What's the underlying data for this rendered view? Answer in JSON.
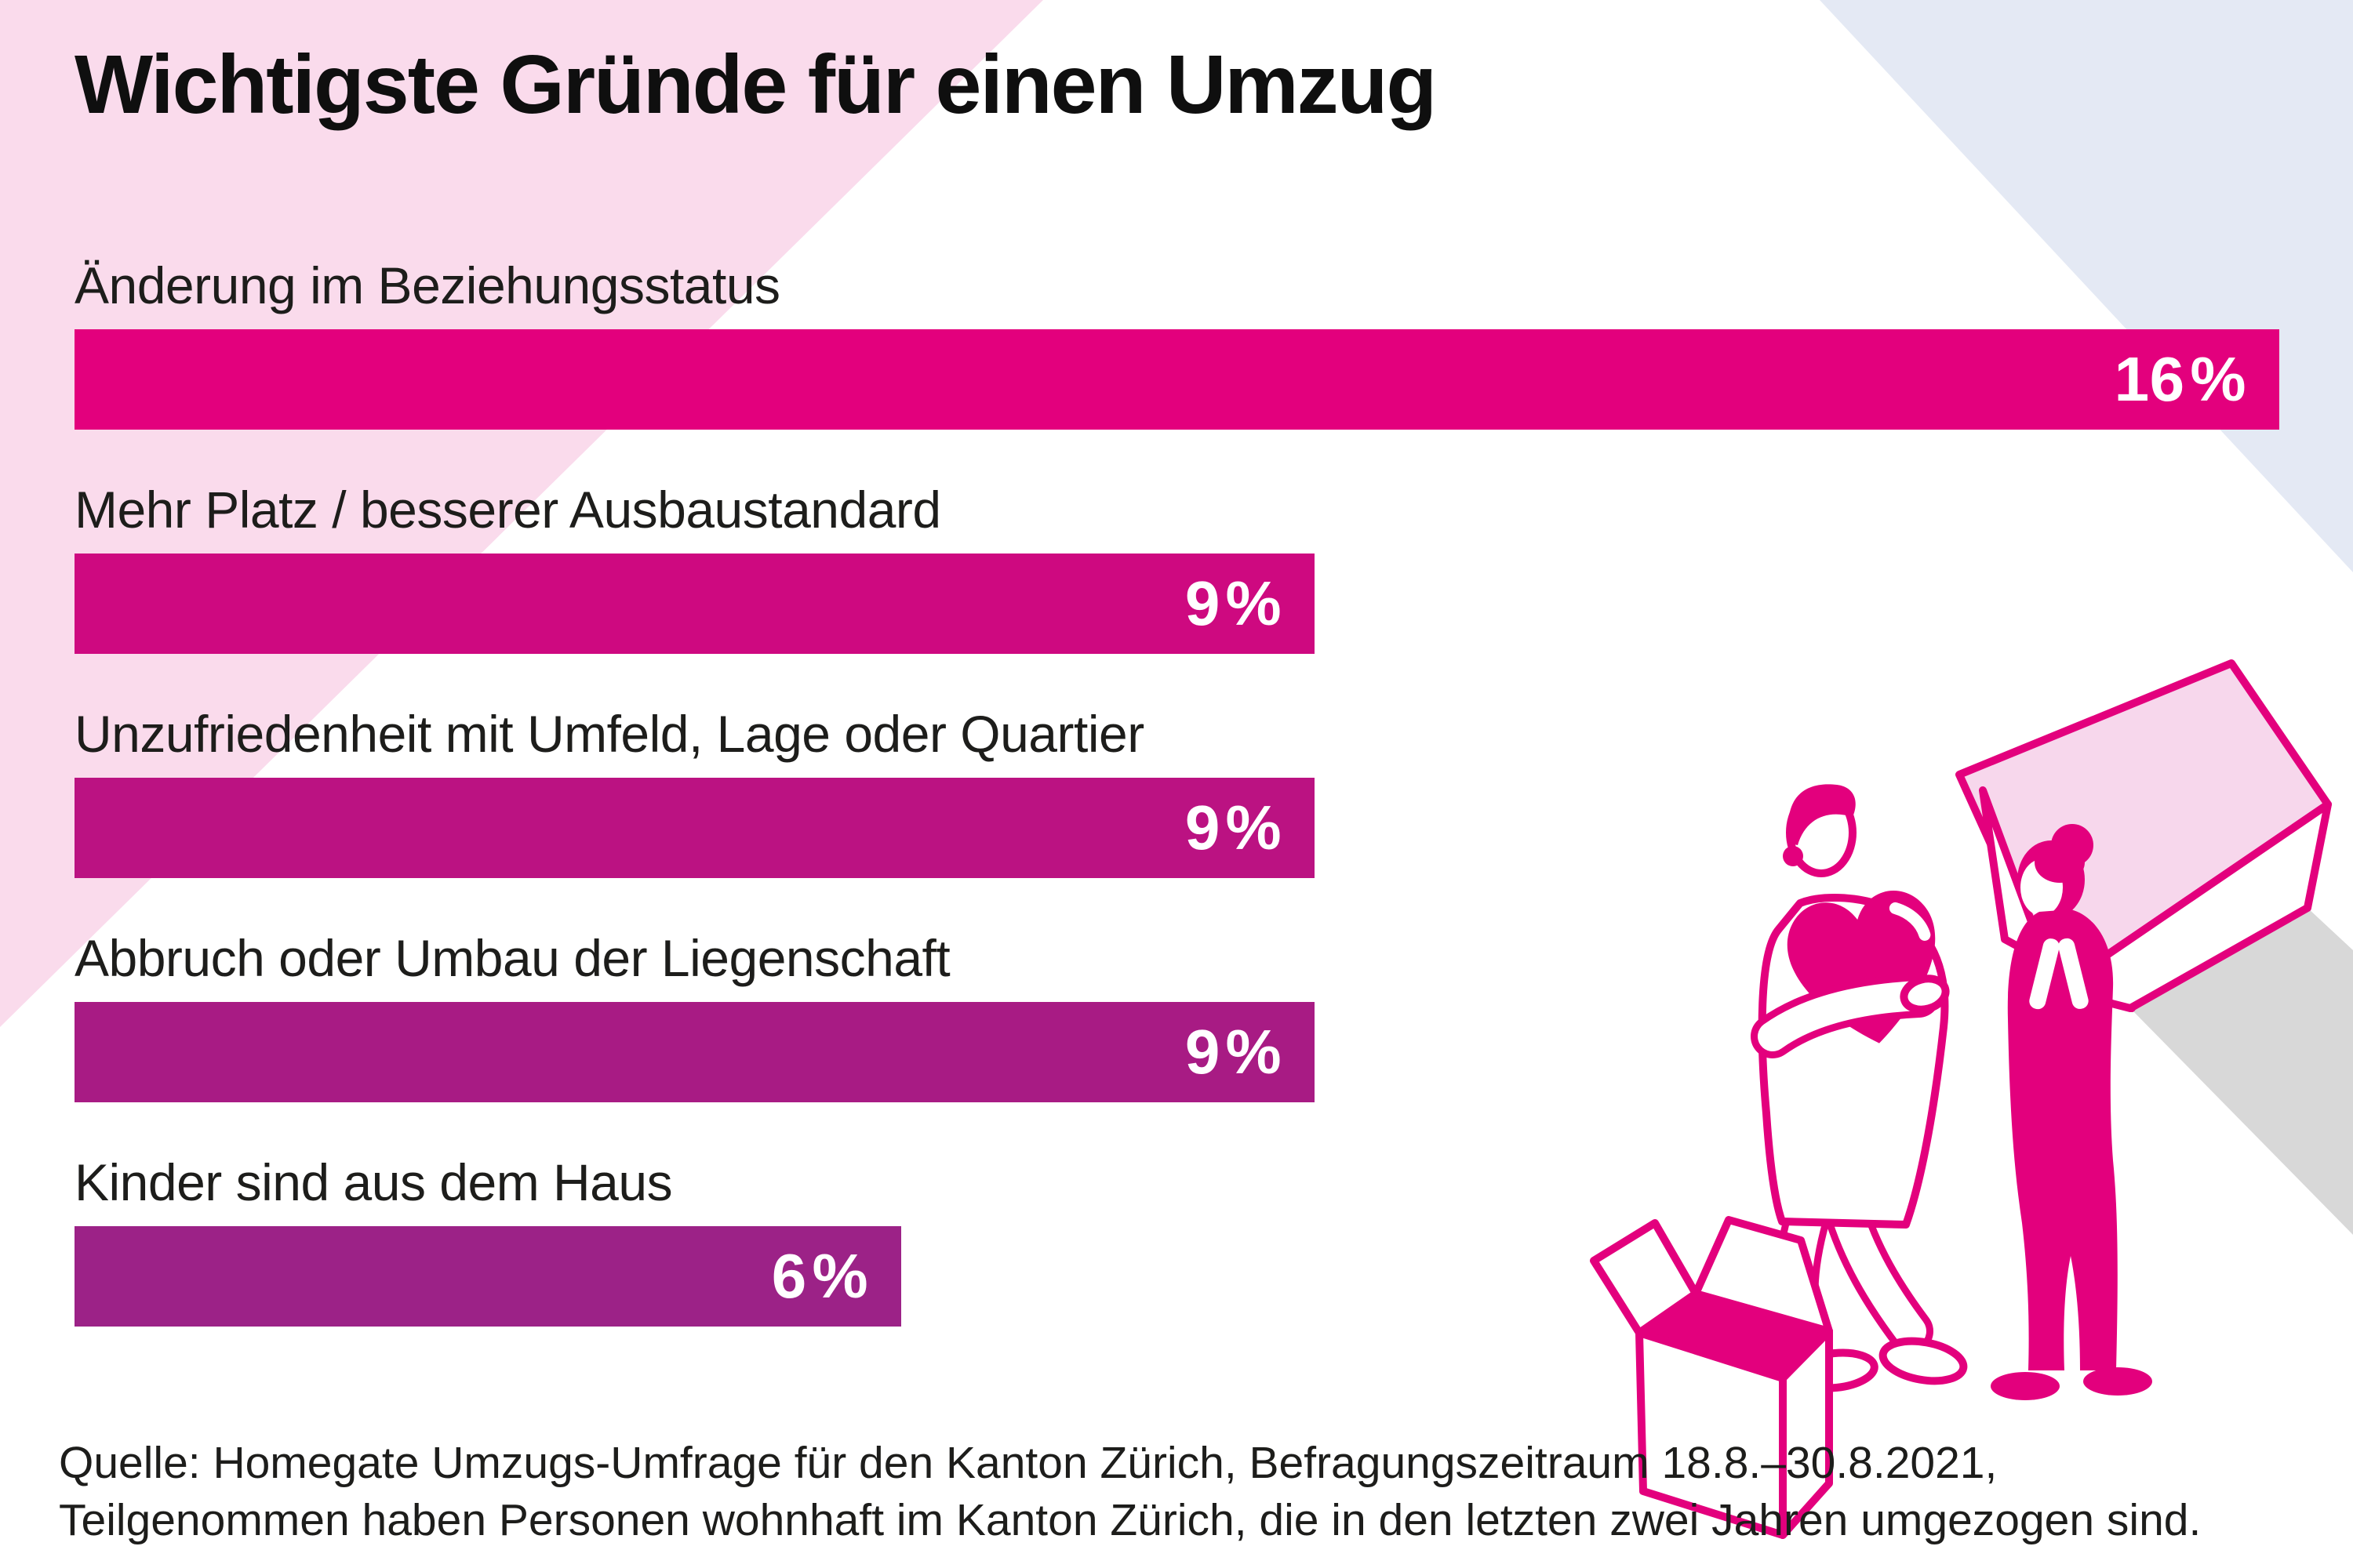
{
  "page": {
    "title": "Wichtigste Gründe für einen Umzug",
    "source": {
      "line1": "Quelle: Homegate Umzugs-Umfrage für den Kanton Zürich, Befragungszeitraum 18.8.–30.8.2021,",
      "line2": "Teilgenommen haben Personen wohnhaft im Kanton Zürich, die in den letzten zwei Jahren umgezogen sind."
    }
  },
  "chart_data": {
    "type": "bar",
    "orientation": "horizontal",
    "title": "Wichtigste Gründe für einen Umzug",
    "categories": [
      "Änderung im Beziehungsstatus",
      "Mehr Platz / besserer Ausbaustandard",
      "Unzufriedenheit mit Umfeld, Lage oder Quartier",
      "Abbruch oder Umbau der Liegenschaft",
      "Kinder sind aus dem Haus"
    ],
    "values": [
      16,
      9,
      9,
      9,
      6
    ],
    "value_labels": [
      "16 %",
      "9 %",
      "9 %",
      "9 %",
      "6 %"
    ],
    "unit": "%",
    "xlim": [
      0,
      16
    ],
    "axis_shown": false,
    "grid": false,
    "legend": false,
    "bar_colors": [
      "#e3007d",
      "#ce0980",
      "#bb1282",
      "#a81b84",
      "#9c2287"
    ],
    "value_label_color": "#ffffff",
    "label_color": "#1d1d1b",
    "source": "Quelle: Homegate Umzugs-Umfrage für den Kanton Zürich, Befragungszeitraum 18.8.–30.8.2021, Teilgenommen haben Personen wohnhaft im Kanton Zürich, die in den letzten zwei Jahren umgezogen sind."
  },
  "decor": {
    "background": "#ffffff",
    "pink_triangle_color": "#fadbec",
    "blue_triangle_color": "#e4e9f4",
    "shadow_color": "#d8d8d8",
    "illustration_primary": "#e3007d",
    "roof_color": "#f7d7ec"
  }
}
